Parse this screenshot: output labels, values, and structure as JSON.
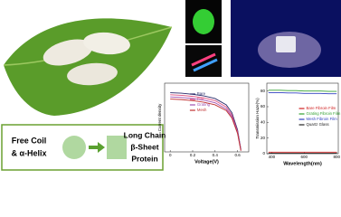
{
  "protein": {
    "left_lines": [
      "Free Coil",
      "& α-Helix"
    ],
    "right_lines": [
      "Long Chain",
      "β-Sheet",
      "Protein"
    ]
  },
  "chart_data": [
    {
      "type": "line",
      "xlabel": "Voltage(V)",
      "ylabel": "Current density",
      "x": [
        0,
        0.1,
        0.2,
        0.3,
        0.4,
        0.5,
        0.55,
        0.6,
        0.63
      ],
      "xlim": [
        -0.05,
        0.7
      ],
      "xticks": [
        0.0,
        0.2,
        0.4,
        0.6
      ],
      "ylim": [
        0,
        13
      ],
      "series": [
        {
          "name": "Bare",
          "color": "#2a2a6a",
          "values": [
            11.2,
            11.1,
            10.9,
            10.6,
            10.1,
            8.9,
            7.4,
            4.2,
            0.5
          ]
        },
        {
          "name": "Flat",
          "color": "#e05080",
          "values": [
            10.8,
            10.7,
            10.5,
            10.2,
            9.7,
            8.5,
            7.0,
            3.9,
            0.4
          ]
        },
        {
          "name": "Grating",
          "color": "#a050b0",
          "values": [
            10.4,
            10.3,
            10.1,
            9.8,
            9.3,
            8.1,
            6.7,
            3.7,
            0.3
          ]
        },
        {
          "name": "Mesh",
          "color": "#c03030",
          "values": [
            10.0,
            9.9,
            9.7,
            9.4,
            8.9,
            7.8,
            6.4,
            3.5,
            0.2
          ]
        }
      ],
      "legend": "upper-right"
    },
    {
      "type": "line",
      "xlabel": "Wavelength(nm)",
      "ylabel": "Transmission Haze(%)",
      "x": [
        380,
        450,
        500,
        550,
        600,
        650,
        700,
        750,
        800
      ],
      "xlim": [
        370,
        810
      ],
      "xticks": [
        400,
        600,
        800
      ],
      "ylim": [
        0,
        90
      ],
      "yticks": [
        0,
        20,
        40,
        60,
        80
      ],
      "series": [
        {
          "name": "Bare Fibroin Film",
          "color": "#d02020",
          "values": [
            2,
            2,
            2,
            2,
            2,
            2,
            2,
            2,
            2
          ]
        },
        {
          "name": "Grating Fibroin Film",
          "color": "#30a030",
          "values": [
            81,
            81,
            80.5,
            80.5,
            80,
            80,
            80,
            79.5,
            79.5
          ]
        },
        {
          "name": "Mesh Fibroin Film",
          "color": "#3040c0",
          "values": [
            78,
            78,
            77.5,
            77.5,
            77,
            77,
            77,
            76.5,
            76.5
          ]
        },
        {
          "name": "Quartz Glass",
          "color": "#222222",
          "values": [
            0.5,
            0.5,
            0.5,
            0.5,
            0.5,
            0.5,
            0.5,
            0.5,
            0.5
          ]
        }
      ],
      "legend": "center-right"
    }
  ]
}
